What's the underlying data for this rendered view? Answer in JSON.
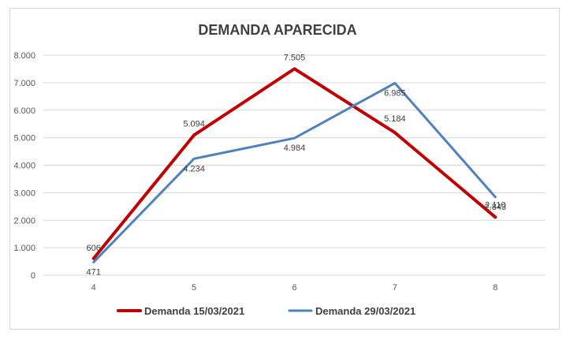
{
  "chart_data": {
    "type": "line",
    "title": "DEMANDA APARECIDA",
    "x": [
      "4",
      "5",
      "6",
      "7",
      "8"
    ],
    "ylim": [
      0,
      8000
    ],
    "ytick_labels": [
      "0",
      "1.000",
      "2.000",
      "3.000",
      "4.000",
      "5.000",
      "6.000",
      "7.000",
      "8.000"
    ],
    "grid": true,
    "legend_position": "bottom",
    "series": [
      {
        "name": "Demanda 15/03/2021",
        "color": "#C00000",
        "values": [
          606,
          5094,
          7505,
          5184,
          2110
        ],
        "labels": [
          "606",
          "5.094",
          "7.505",
          "5.184",
          "2.110"
        ]
      },
      {
        "name": "Demanda 29/03/2021",
        "color": "#4F81BD",
        "values": [
          471,
          4234,
          4984,
          6985,
          2843
        ],
        "labels": [
          "471",
          "4.234",
          "4.984",
          "6.985",
          "2.843"
        ]
      }
    ]
  }
}
